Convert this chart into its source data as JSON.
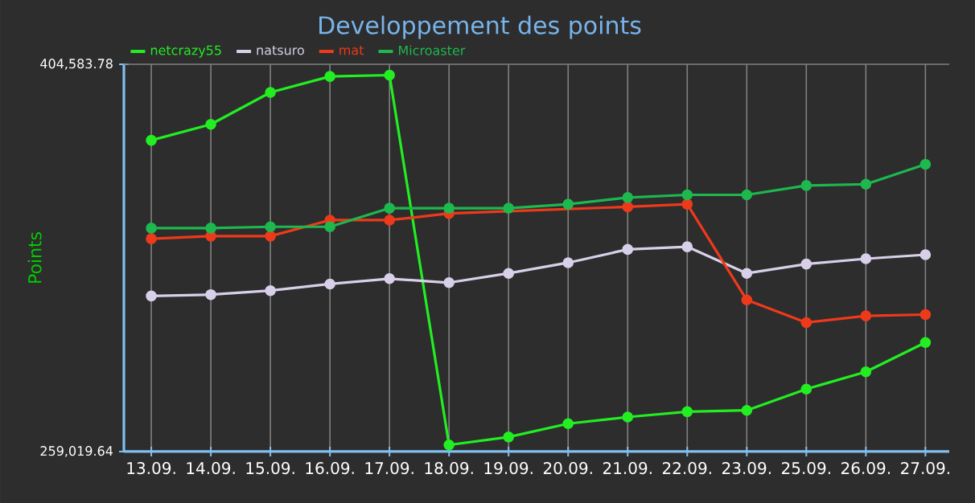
{
  "chart_data": {
    "type": "line",
    "title": "Developpement des points",
    "ylabel": "Points",
    "categories": [
      "13.09.",
      "14.09.",
      "15.09.",
      "16.09.",
      "17.09.",
      "18.09.",
      "19.09.",
      "20.09.",
      "21.09.",
      "22.09.",
      "23.09.",
      "25.09.",
      "26.09.",
      "27.09."
    ],
    "series": [
      {
        "name": "netcrazy55",
        "color": "#22ee22",
        "values": [
          376000,
          382000,
          394000,
          400000,
          400500,
          261500,
          264500,
          269500,
          272000,
          274000,
          274500,
          282500,
          289000,
          300000
        ]
      },
      {
        "name": "natsuro",
        "color": "#d8d0e8",
        "values": [
          317500,
          318000,
          319500,
          322000,
          324000,
          322500,
          326000,
          330000,
          335000,
          336000,
          326000,
          329500,
          331500,
          333000
        ]
      },
      {
        "name": "mat",
        "color": "#ee3a1a",
        "values": [
          339000,
          340000,
          340000,
          346000,
          346000,
          348500,
          null,
          null,
          351000,
          352000,
          316000,
          307500,
          310000,
          310500
        ]
      },
      {
        "name": "Microaster",
        "color": "#1db84e",
        "values": [
          343000,
          343000,
          343500,
          343500,
          350500,
          350500,
          350500,
          352000,
          354500,
          355500,
          355500,
          359000,
          359500,
          367000
        ]
      }
    ],
    "ylim": [
      259019.64,
      404583.78
    ],
    "yticks": [
      {
        "value": 259019.64,
        "label": "259,019.64"
      },
      {
        "value": 404583.78,
        "label": "404,583.78"
      }
    ],
    "grid": "x",
    "legend": "top left",
    "marker": "circle",
    "line_style": "solid"
  }
}
